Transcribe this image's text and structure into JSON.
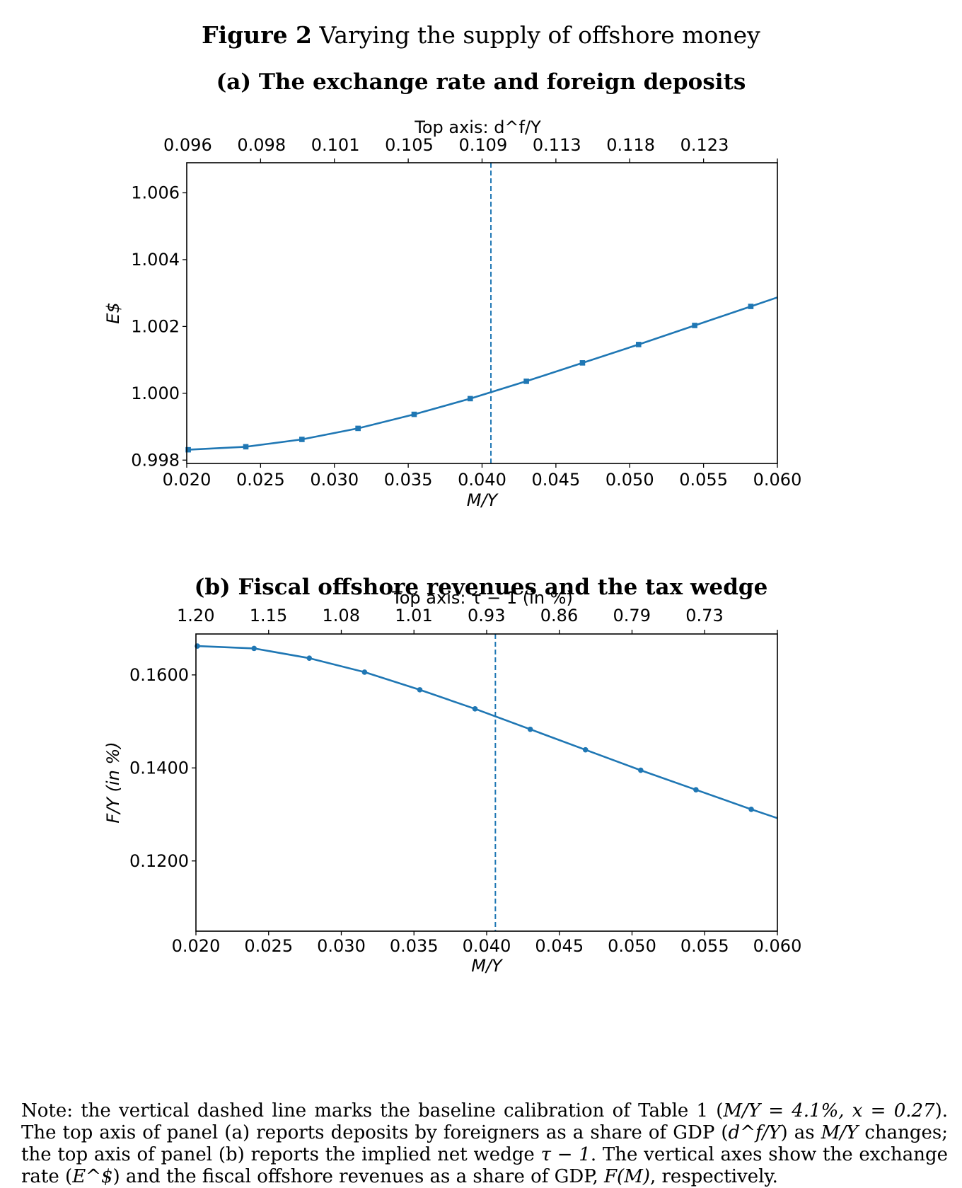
{
  "figure": {
    "label": "Figure 2",
    "title": "Varying the supply of offshore money"
  },
  "note": {
    "text_before_1": "Note: the vertical dashed line marks the baseline calibration of Table 1 (",
    "math_1": "M/Y = 4.1%, x = 0.27",
    "text_after_1": "). The top axis of panel (a) reports deposits by foreigners as a share of GDP (",
    "math_2": "d^f/Y",
    "text_after_2": ") as ",
    "math_3": "M/Y",
    "text_after_3": " changes; the top axis of panel (b) reports the implied net wedge ",
    "math_4": "τ − 1",
    "text_after_4": ". The vertical axes show the exchange rate (",
    "math_5": "E^$",
    "text_after_5": ") and the fiscal offshore revenues as a share of GDP, ",
    "math_6": "F(M)",
    "text_after_6": ", respectively."
  },
  "chart_data": [
    {
      "panel": "a",
      "type": "line",
      "title": "(a) The exchange rate and foreign deposits",
      "xlabel": "M/Y",
      "ylabel": "E$",
      "top_axis_label": "Top axis: d^f/Y",
      "xlim": [
        0.02,
        0.06
      ],
      "ylim": [
        0.9979,
        1.0069
      ],
      "x_ticks": [
        "0.020",
        "0.025",
        "0.030",
        "0.035",
        "0.040",
        "0.045",
        "0.050",
        "0.055",
        "0.060"
      ],
      "y_ticks": [
        "0.998",
        "1.000",
        "1.002",
        "1.004",
        "1.006"
      ],
      "y_tick_values": [
        0.998,
        1.0,
        1.002,
        1.004,
        1.006
      ],
      "top_ticks": [
        "0.096",
        "0.098",
        "0.101",
        "0.105",
        "0.109",
        "0.113",
        "0.118",
        "0.123"
      ],
      "top_tick_positions": [
        0.025,
        0.03,
        0.035,
        0.04,
        0.045,
        0.05,
        0.055,
        0.06
      ],
      "baseline_x": 0.0406,
      "marker": "square",
      "color": "#1f77b4",
      "series": [
        {
          "x": [
            0.0201,
            0.024,
            0.0278,
            0.0316,
            0.0354,
            0.0392,
            0.043,
            0.0468,
            0.0506,
            0.0544,
            0.0582,
            0.06
          ],
          "y": [
            0.99831,
            0.9984,
            0.99862,
            0.99895,
            0.99937,
            0.99984,
            1.00036,
            1.00091,
            1.00146,
            1.00203,
            1.0026,
            1.00287
          ],
          "markers_at": [
            0,
            1,
            2,
            3,
            4,
            5,
            6,
            7,
            8,
            9,
            10
          ]
        }
      ]
    },
    {
      "panel": "b",
      "type": "line",
      "title": "(b) Fiscal offshore revenues and the tax wedge",
      "xlabel": "M/Y",
      "ylabel": "F/Y (in %)",
      "top_axis_label": "Top axis: τ − 1 (in %)",
      "xlim": [
        0.02,
        0.06
      ],
      "ylim": [
        0.1049,
        0.1688
      ],
      "x_ticks": [
        "0.020",
        "0.025",
        "0.030",
        "0.035",
        "0.040",
        "0.045",
        "0.050",
        "0.055",
        "0.060"
      ],
      "y_ticks": [
        "0.1200",
        "0.1400",
        "0.1600"
      ],
      "y_tick_values": [
        0.12,
        0.14,
        0.16
      ],
      "top_ticks": [
        "1.20",
        "1.15",
        "1.08",
        "1.01",
        "0.93",
        "0.86",
        "0.79",
        "0.73"
      ],
      "top_tick_positions": [
        0.025,
        0.03,
        0.035,
        0.04,
        0.045,
        0.05,
        0.055,
        0.06
      ],
      "baseline_x": 0.0406,
      "marker": "circle",
      "color": "#1f77b4",
      "series": [
        {
          "x": [
            0.0201,
            0.024,
            0.0278,
            0.0316,
            0.0354,
            0.0392,
            0.043,
            0.0468,
            0.0506,
            0.0544,
            0.0582,
            0.06
          ],
          "y": [
            0.1662,
            0.1657,
            0.1636,
            0.1606,
            0.1568,
            0.1527,
            0.1483,
            0.1439,
            0.1395,
            0.1353,
            0.1311,
            0.1292
          ],
          "markers_at": [
            0,
            1,
            2,
            3,
            4,
            5,
            6,
            7,
            8,
            9,
            10
          ]
        }
      ]
    }
  ]
}
